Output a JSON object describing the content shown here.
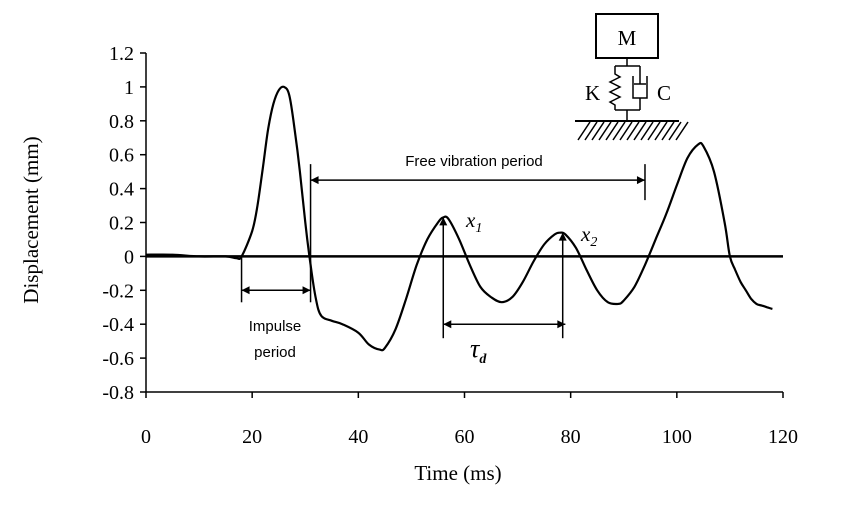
{
  "chart_data": {
    "type": "line",
    "title": "",
    "xlabel": "Time (ms)",
    "ylabel": "Displacement (mm)",
    "xlim": [
      0,
      120
    ],
    "ylim": [
      -0.8,
      1.2
    ],
    "x_ticks": [
      0,
      20,
      40,
      60,
      80,
      100,
      120
    ],
    "x_tick_labels": [
      "0",
      "20",
      "40",
      "60",
      "80",
      "100",
      "120"
    ],
    "y_ticks": [
      -0.8,
      -0.6,
      -0.4,
      -0.2,
      0,
      0.2,
      0.4,
      0.6,
      0.8,
      1,
      1.2
    ],
    "y_tick_labels": [
      "-0.8",
      "-0.6",
      "-0.4",
      "-0.2",
      "0",
      "0.2",
      "0.4",
      "0.6",
      "0.8",
      "1",
      "1.2"
    ],
    "grid": false,
    "legend": "none",
    "series": [
      {
        "points": [
          [
            0,
            0.01
          ],
          [
            5,
            0.01
          ],
          [
            10,
            0.0
          ],
          [
            15,
            0.0
          ],
          [
            17,
            -0.01
          ],
          [
            18,
            0.0
          ],
          [
            20,
            0.15
          ],
          [
            21,
            0.3
          ],
          [
            22,
            0.52
          ],
          [
            23,
            0.75
          ],
          [
            24,
            0.9
          ],
          [
            25,
            0.98
          ],
          [
            26,
            1.0
          ],
          [
            27,
            0.95
          ],
          [
            28,
            0.75
          ],
          [
            29,
            0.5
          ],
          [
            30,
            0.2
          ],
          [
            31,
            -0.05
          ],
          [
            32,
            -0.25
          ],
          [
            33,
            -0.35
          ],
          [
            35,
            -0.38
          ],
          [
            37,
            -0.4
          ],
          [
            40,
            -0.45
          ],
          [
            42,
            -0.52
          ],
          [
            44,
            -0.55
          ],
          [
            45,
            -0.54
          ],
          [
            47,
            -0.43
          ],
          [
            49,
            -0.25
          ],
          [
            51,
            -0.05
          ],
          [
            53,
            0.1
          ],
          [
            55,
            0.2
          ],
          [
            56,
            0.23
          ],
          [
            57,
            0.22
          ],
          [
            59,
            0.1
          ],
          [
            61,
            -0.05
          ],
          [
            63,
            -0.18
          ],
          [
            65,
            -0.24
          ],
          [
            67,
            -0.27
          ],
          [
            69,
            -0.24
          ],
          [
            71,
            -0.15
          ],
          [
            73,
            -0.03
          ],
          [
            75,
            0.07
          ],
          [
            77,
            0.13
          ],
          [
            78,
            0.14
          ],
          [
            79,
            0.13
          ],
          [
            81,
            0.05
          ],
          [
            83,
            -0.08
          ],
          [
            85,
            -0.2
          ],
          [
            87,
            -0.27
          ],
          [
            89,
            -0.28
          ],
          [
            90,
            -0.26
          ],
          [
            92,
            -0.18
          ],
          [
            94,
            -0.05
          ],
          [
            96,
            0.1
          ],
          [
            98,
            0.25
          ],
          [
            100,
            0.42
          ],
          [
            102,
            0.58
          ],
          [
            104,
            0.66
          ],
          [
            105,
            0.65
          ],
          [
            107,
            0.5
          ],
          [
            109,
            0.2
          ],
          [
            110,
            0.0
          ],
          [
            111,
            -0.08
          ],
          [
            112,
            -0.15
          ],
          [
            113,
            -0.2
          ],
          [
            114,
            -0.25
          ],
          [
            115,
            -0.28
          ],
          [
            116,
            -0.29
          ],
          [
            117,
            -0.3
          ],
          [
            118,
            -0.31
          ]
        ]
      }
    ],
    "annotations": {
      "free_vibration": {
        "label": "Free vibration period",
        "x_start": 31,
        "x_end": 94,
        "y": 0.45
      },
      "impulse": {
        "label_line1": "Impulse",
        "label_line2": "period",
        "x_start": 18,
        "x_end": 31,
        "y": -0.2
      },
      "tau_d": {
        "symbol": "τ",
        "subscript": "d",
        "x_start": 56,
        "x_end": 79,
        "y": -0.4
      },
      "x1": {
        "symbol": "x",
        "subscript": "1",
        "x": 56,
        "y": 0.23
      },
      "x2": {
        "symbol": "x",
        "subscript": "2",
        "x": 78.5,
        "y": 0.14
      },
      "model": {
        "mass": "M",
        "spring": "K",
        "damper": "C"
      }
    }
  }
}
